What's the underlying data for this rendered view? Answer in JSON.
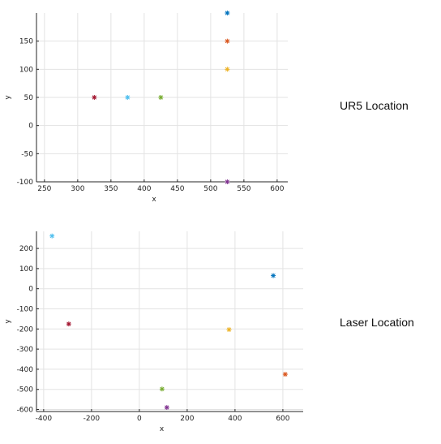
{
  "chart_data": [
    {
      "type": "scatter",
      "side_label": "UR5 Location",
      "xlabel": "x",
      "ylabel": "y",
      "xlim": [
        238,
        616
      ],
      "ylim": [
        -100,
        200
      ],
      "xticks": [
        250,
        300,
        350,
        400,
        450,
        500,
        550,
        600
      ],
      "yticks": [
        -100,
        -50,
        0,
        50,
        100,
        150
      ],
      "grid": true,
      "points": [
        {
          "x": 325,
          "y": 50,
          "color": "#a2142f"
        },
        {
          "x": 375,
          "y": 50,
          "color": "#4dbeee"
        },
        {
          "x": 425,
          "y": 50,
          "color": "#77ac30"
        },
        {
          "x": 525,
          "y": 200,
          "color": "#0072bd"
        },
        {
          "x": 525,
          "y": 150,
          "color": "#d95319"
        },
        {
          "x": 525,
          "y": 100,
          "color": "#edb120"
        },
        {
          "x": 525,
          "y": -100,
          "color": "#7e2f8e"
        }
      ]
    },
    {
      "type": "scatter",
      "side_label": "Laser Location",
      "xlabel": "x",
      "ylabel": "y",
      "xlim": [
        -430,
        685
      ],
      "ylim": [
        -610,
        285
      ],
      "xticks": [
        -400,
        -200,
        0,
        200,
        400,
        600
      ],
      "yticks": [
        -600,
        -500,
        -400,
        -300,
        -200,
        -100,
        0,
        100,
        200
      ],
      "grid": true,
      "points": [
        {
          "x": -365,
          "y": 262,
          "color": "#4dbeee"
        },
        {
          "x": 560,
          "y": 65,
          "color": "#0072bd"
        },
        {
          "x": -295,
          "y": -175,
          "color": "#a2142f"
        },
        {
          "x": 375,
          "y": -203,
          "color": "#edb120"
        },
        {
          "x": 610,
          "y": -425,
          "color": "#d95319"
        },
        {
          "x": 95,
          "y": -498,
          "color": "#77ac30"
        },
        {
          "x": 115,
          "y": -590,
          "color": "#7e2f8e"
        }
      ]
    }
  ]
}
